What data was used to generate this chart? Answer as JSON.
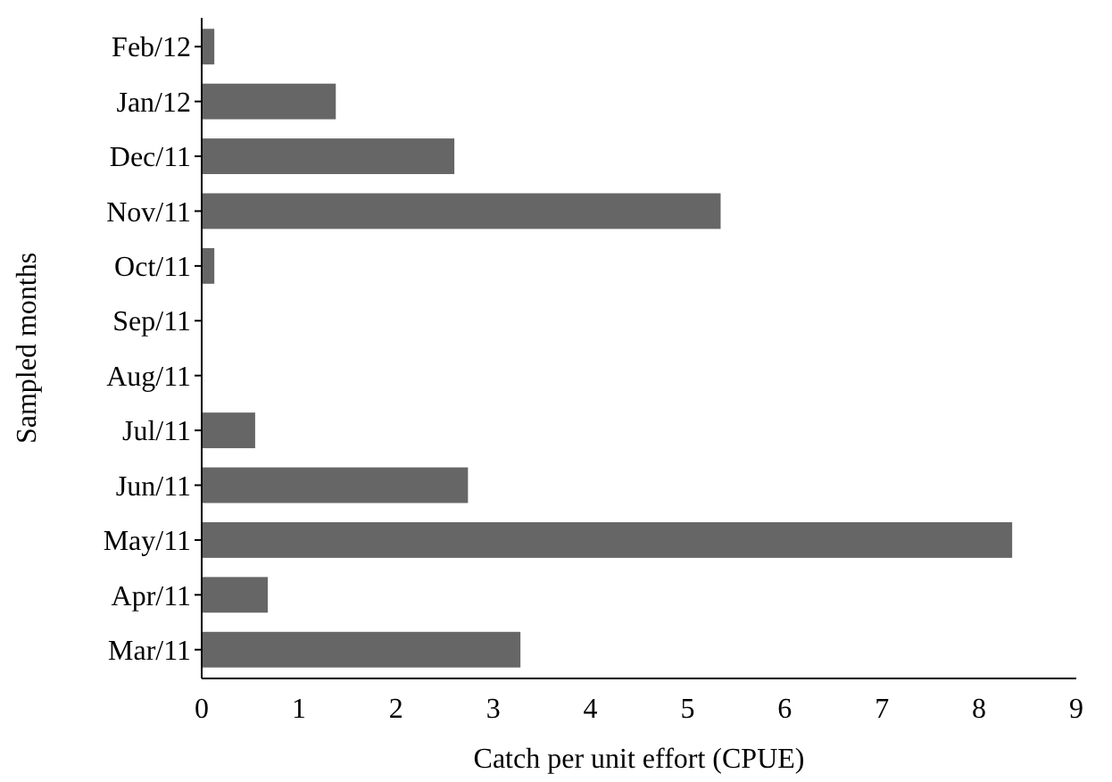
{
  "chart_data": {
    "type": "bar",
    "orientation": "horizontal",
    "xlabel": "Catch per unit effort (CPUE)",
    "ylabel": "Sampled months",
    "categories": [
      "Feb/12",
      "Jan/12",
      "Dec/11",
      "Nov/11",
      "Oct/11",
      "Sep/11",
      "Aug/11",
      "Jul/11",
      "Jun/11",
      "May/11",
      "Apr/11",
      "Mar/11"
    ],
    "values": [
      0.13,
      1.38,
      2.6,
      5.34,
      0.13,
      0,
      0,
      0.55,
      2.74,
      8.34,
      0.68,
      3.28
    ],
    "color": "#666666",
    "xlim": [
      0,
      9
    ],
    "xticks": [
      0,
      1,
      2,
      3,
      4,
      5,
      6,
      7,
      8,
      9
    ],
    "grid": false
  }
}
